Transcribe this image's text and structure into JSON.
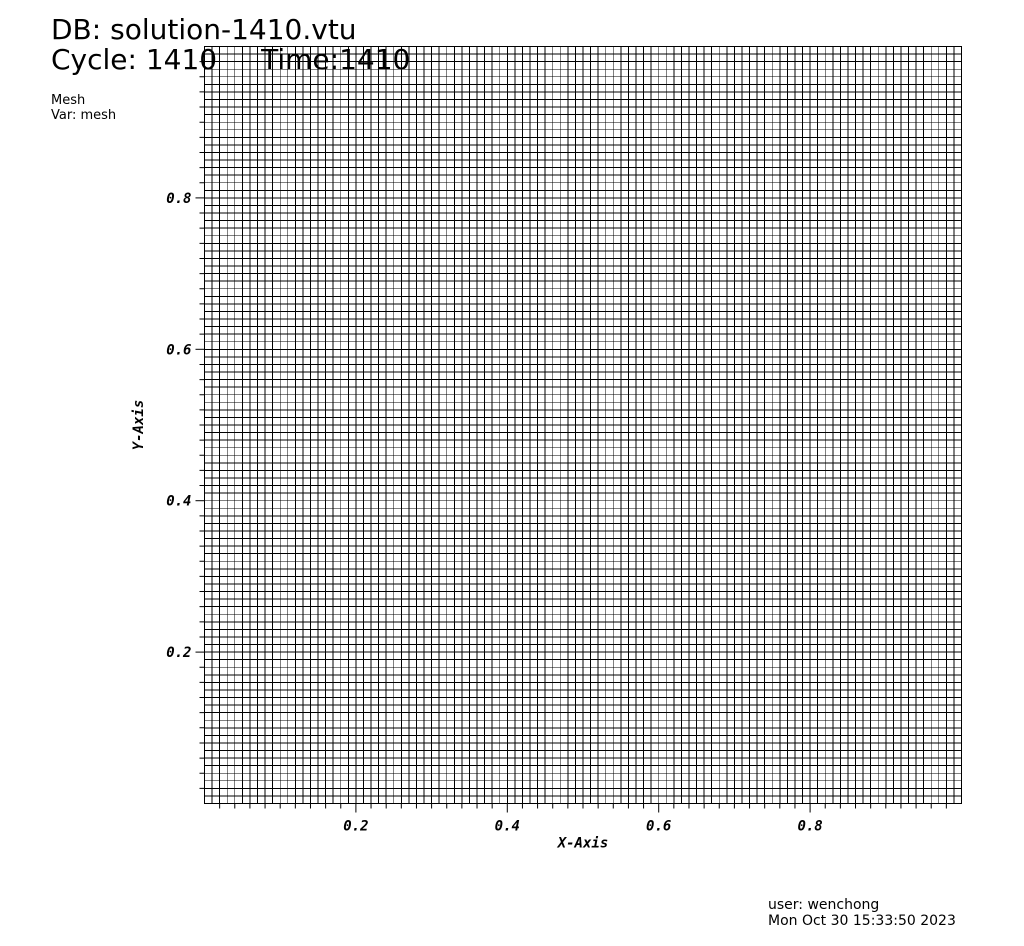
{
  "header": {
    "db_title": "DB: solution-1410.vtu",
    "cycle_label": "Cycle: 1410",
    "time_label": "Time:1410",
    "plot_name": "Mesh",
    "var_label": "Var: mesh"
  },
  "footer": {
    "user": "user: wenchong",
    "date": "Mon Oct 30 15:33:50 2023"
  },
  "chart_data": {
    "type": "mesh",
    "xlabel": "X-Axis",
    "ylabel": "Y-Axis",
    "xlim": [
      0,
      1
    ],
    "ylim": [
      0,
      1
    ],
    "x_ticks": [
      {
        "value": 0.2,
        "label": "0.2"
      },
      {
        "value": 0.4,
        "label": "0.4"
      },
      {
        "value": 0.6,
        "label": "0.6"
      },
      {
        "value": 0.8,
        "label": "0.8"
      }
    ],
    "y_ticks": [
      {
        "value": 0.2,
        "label": "0.2"
      },
      {
        "value": 0.4,
        "label": "0.4"
      },
      {
        "value": 0.6,
        "label": "0.6"
      },
      {
        "value": 0.8,
        "label": "0.8"
      }
    ],
    "grid_cells": 100,
    "line_color": "#000000"
  }
}
